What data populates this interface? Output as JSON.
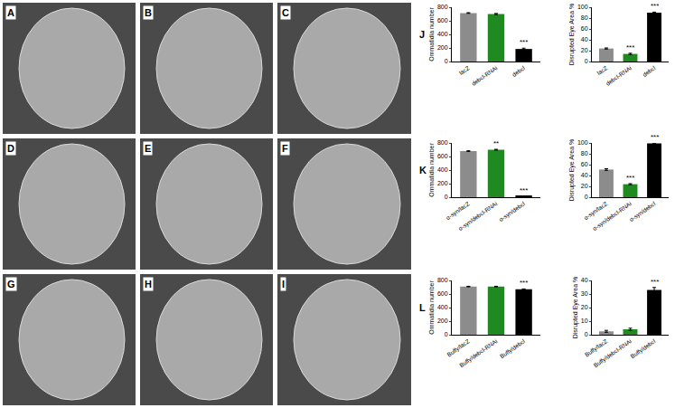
{
  "image_panels": [
    "A",
    "B",
    "C",
    "D",
    "E",
    "F",
    "G",
    "H",
    "I"
  ],
  "chart_data": [
    {
      "type": "bar",
      "panel": "J",
      "y_label": "Ommatidia number",
      "categories": [
        "lacZ",
        "debcl-RNAi",
        "debcl"
      ],
      "values": [
        715,
        700,
        185
      ],
      "errors": [
        5,
        8,
        12
      ],
      "significance": [
        null,
        null,
        "***"
      ],
      "colors": [
        "#8c8c8c",
        "#1f8a1f",
        "#000000"
      ],
      "ylim": [
        0,
        800
      ],
      "yticks": [
        0,
        200,
        400,
        600,
        800
      ],
      "grid": false
    },
    {
      "type": "bar",
      "y_label": "Disrupted Eye Area %",
      "categories": [
        "lacZ",
        "debcl-RNAi",
        "debcl"
      ],
      "values": [
        24,
        14,
        90
      ],
      "errors": [
        1,
        1.2,
        1
      ],
      "significance": [
        null,
        "***",
        "***"
      ],
      "colors": [
        "#8c8c8c",
        "#1f8a1f",
        "#000000"
      ],
      "ylim": [
        0,
        100
      ],
      "yticks": [
        0,
        20,
        40,
        60,
        80,
        100
      ],
      "grid": false
    },
    {
      "type": "bar",
      "panel": "K",
      "y_label": "Ommatidia number",
      "categories": [
        "α-syn/lacZ",
        "α-syn/debcl-RNAi",
        "α-syn/debcl"
      ],
      "values": [
        680,
        700,
        15
      ],
      "errors": [
        5,
        6,
        3
      ],
      "significance": [
        null,
        "**",
        "***"
      ],
      "colors": [
        "#8c8c8c",
        "#1f8a1f",
        "#000000"
      ],
      "ylim": [
        0,
        800
      ],
      "yticks": [
        0,
        200,
        400,
        600,
        800
      ],
      "grid": false
    },
    {
      "type": "bar",
      "y_label": "Disrupted Eye Area %",
      "categories": [
        "α-syn/lacZ",
        "α-syn/debcl-RNAi",
        "α-syn/debcl"
      ],
      "values": [
        51,
        24,
        99
      ],
      "errors": [
        1.5,
        1,
        0.8
      ],
      "significance": [
        null,
        "***",
        "***"
      ],
      "colors": [
        "#8c8c8c",
        "#1f8a1f",
        "#000000"
      ],
      "ylim": [
        0,
        100
      ],
      "yticks": [
        0,
        20,
        40,
        60,
        80,
        100
      ],
      "grid": false
    },
    {
      "type": "bar",
      "panel": "L",
      "y_label": "Ommatidia number",
      "categories": [
        "Buffy/lacZ",
        "Buffy/debcl-RNAi",
        "Buffy/debcl"
      ],
      "values": [
        710,
        710,
        670
      ],
      "errors": [
        4,
        4,
        5
      ],
      "significance": [
        null,
        null,
        "***"
      ],
      "colors": [
        "#8c8c8c",
        "#1f8a1f",
        "#000000"
      ],
      "ylim": [
        0,
        800
      ],
      "yticks": [
        0,
        200,
        400,
        600,
        800
      ],
      "grid": false
    },
    {
      "type": "bar",
      "y_label": "Disrupted Eye Area %",
      "categories": [
        "Buffy/lacZ",
        "Buffy/debcl-RNAi",
        "Buffy/debcl"
      ],
      "values": [
        2.5,
        4,
        33
      ],
      "errors": [
        0.7,
        0.8,
        1.8
      ],
      "significance": [
        null,
        null,
        "***"
      ],
      "colors": [
        "#8c8c8c",
        "#1f8a1f",
        "#000000"
      ],
      "ylim": [
        0,
        40
      ],
      "yticks": [
        0,
        10,
        20,
        30,
        40
      ],
      "grid": false
    }
  ]
}
